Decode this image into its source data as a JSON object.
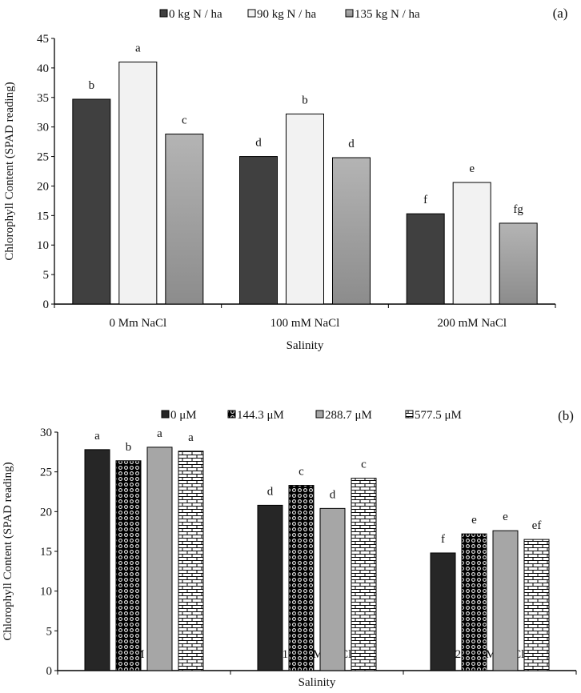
{
  "chart_data": [
    {
      "type": "bar",
      "panel_label": "(a)",
      "title": "",
      "xlabel": "Salinity",
      "ylabel": "Chlorophyll Content (SPAD reading)",
      "ylim": [
        0,
        45
      ],
      "yticks": [
        0,
        5,
        10,
        15,
        20,
        25,
        30,
        35,
        40,
        45
      ],
      "categories": [
        "0 Mm NaCl",
        "100 mM NaCl",
        "200 mM NaCl"
      ],
      "legend_position": "top-center",
      "grid": false,
      "series": [
        {
          "name": "0 kg N / ha",
          "color": "#404040",
          "fill": "solid",
          "values": [
            34.7,
            25.0,
            15.3
          ],
          "letters": [
            "b",
            "d",
            "f"
          ]
        },
        {
          "name": "90 kg N / ha",
          "color": "#f2f2f2",
          "fill": "solid",
          "values": [
            41.0,
            32.2,
            20.6
          ],
          "letters": [
            "a",
            "b",
            "e"
          ]
        },
        {
          "name": "135 kg N / ha",
          "color": "#a6a6a6",
          "fill": "gradient",
          "values": [
            28.8,
            24.8,
            13.7
          ],
          "letters": [
            "c",
            "d",
            "fg"
          ]
        }
      ]
    },
    {
      "type": "bar",
      "panel_label": "(b)",
      "title": "",
      "xlabel": "Salinity",
      "ylabel": "Chlorophyll Content (SPAD reading)",
      "ylim": [
        0,
        30
      ],
      "yticks": [
        0,
        5,
        10,
        15,
        20,
        25,
        30
      ],
      "categories": [
        "0 mM NaCl",
        "100 mM NaCl",
        "200 mM NaCl"
      ],
      "legend_position": "top-center",
      "grid": false,
      "series": [
        {
          "name": "0 μM",
          "color": "#262626",
          "fill": "solid",
          "values": [
            27.8,
            20.8,
            14.8
          ],
          "letters": [
            "a",
            "d",
            "f"
          ]
        },
        {
          "name": "144.3 μM",
          "color": "#000000",
          "fill": "dots",
          "values": [
            26.4,
            23.3,
            17.2
          ],
          "letters": [
            "b",
            "c",
            "e"
          ]
        },
        {
          "name": "288.7 μM",
          "color": "#a6a6a6",
          "fill": "solid",
          "values": [
            28.1,
            20.4,
            17.6
          ],
          "letters": [
            "a",
            "d",
            "e"
          ]
        },
        {
          "name": "577.5 μM",
          "color": "#000000",
          "fill": "bricks",
          "values": [
            27.6,
            24.2,
            16.5
          ],
          "letters": [
            "a",
            "c",
            "ef"
          ]
        }
      ]
    }
  ]
}
